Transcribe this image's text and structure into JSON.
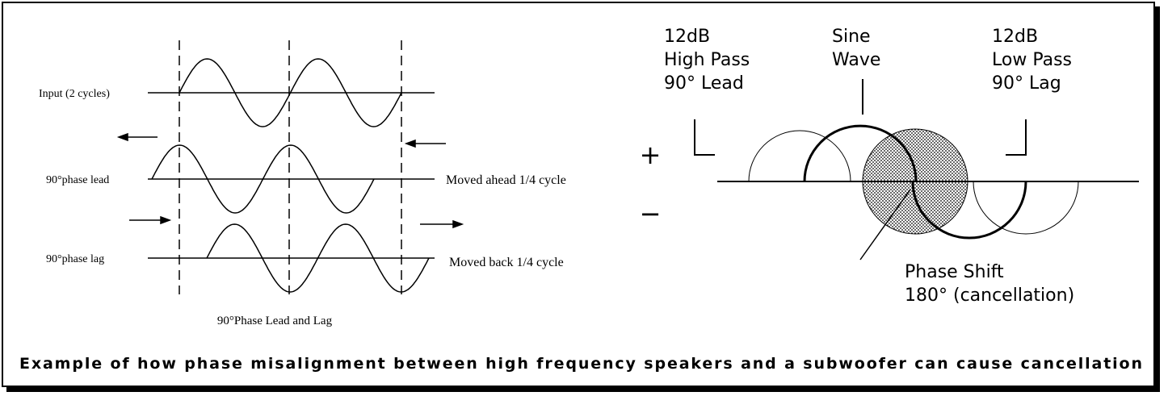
{
  "left_diagram": {
    "rows": [
      {
        "label": "Input (2 cycles)"
      },
      {
        "label": "90°phase lead",
        "note": "Moved ahead 1/4 cycle"
      },
      {
        "label": "90°phase lag",
        "note": "Moved back 1/4 cycle"
      }
    ],
    "caption": "90°Phase Lead and Lag"
  },
  "right_diagram": {
    "plus": "+",
    "minus": "−",
    "high_pass": [
      "12dB",
      "High Pass",
      "90° Lead"
    ],
    "sine": [
      "Sine",
      "Wave"
    ],
    "low_pass": [
      "12dB",
      "Low Pass",
      "90° Lag"
    ],
    "phase_shift": [
      "Phase Shift",
      "180° (cancellation)"
    ]
  },
  "caption": "Example of how phase misalignment between high frequency speakers and a subwoofer can cause cancellation"
}
